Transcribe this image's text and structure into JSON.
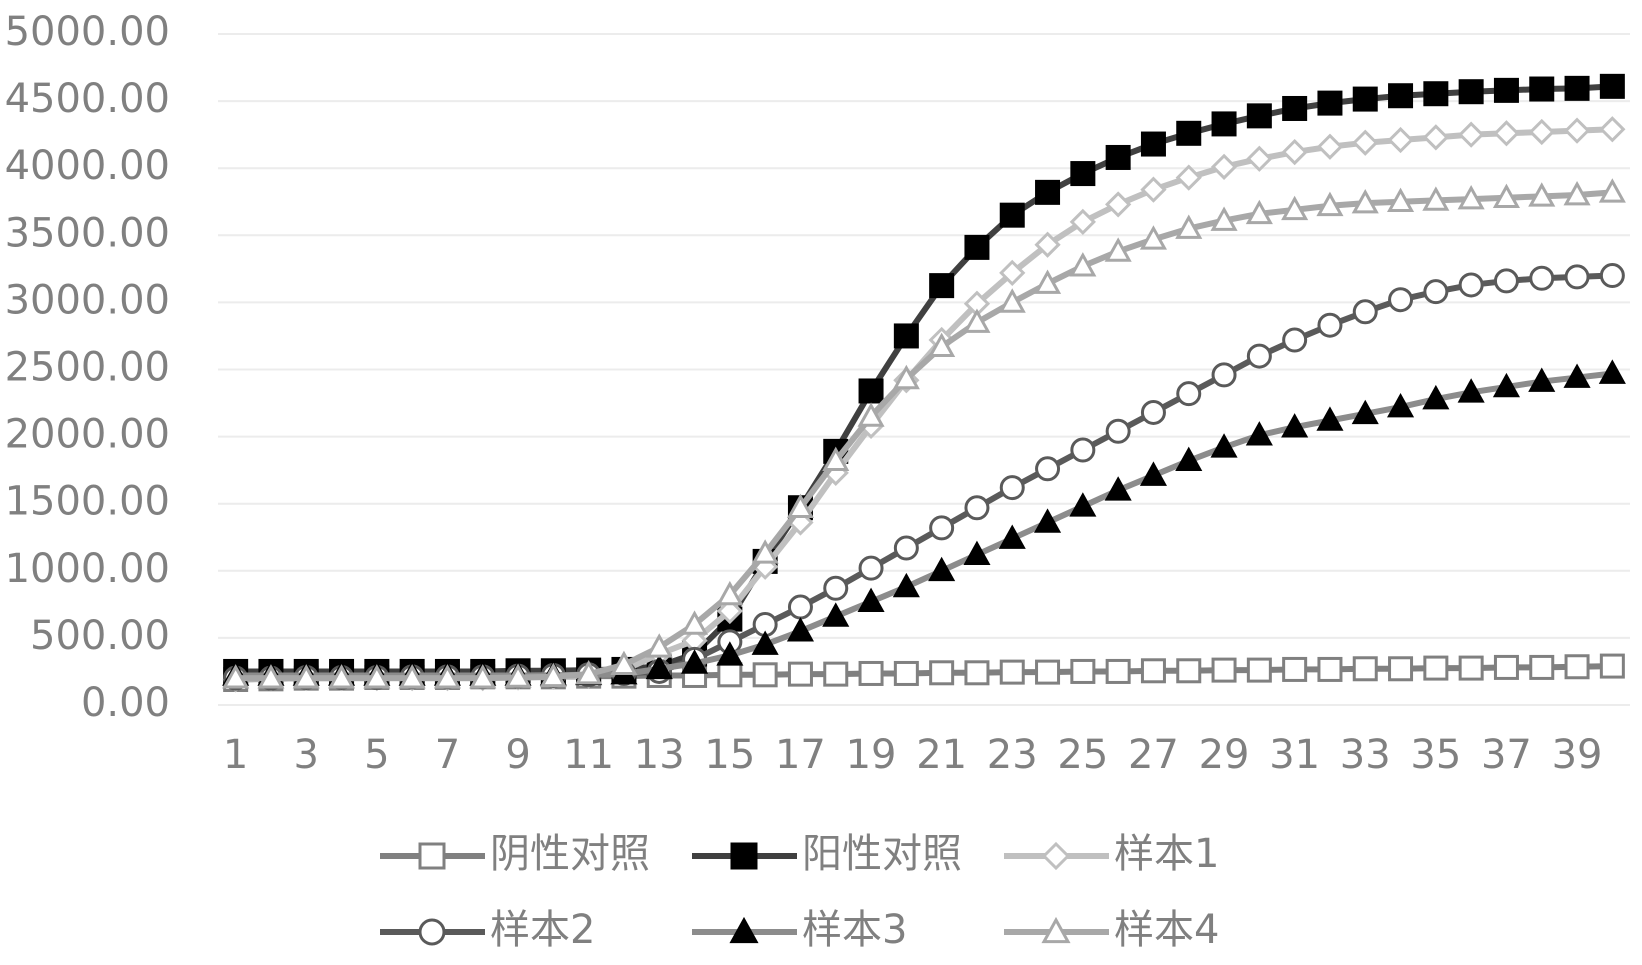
{
  "chart_data": {
    "type": "line",
    "categories": [
      1,
      null,
      3,
      null,
      5,
      null,
      7,
      null,
      9,
      null,
      11,
      null,
      13,
      null,
      15,
      null,
      17,
      null,
      19,
      null,
      21,
      null,
      23,
      null,
      25,
      null,
      27,
      null,
      29,
      null,
      31,
      null,
      33,
      null,
      35,
      null,
      37,
      null,
      39,
      null
    ],
    "ylim": [
      0,
      5000
    ],
    "yticks": [
      {
        "value": 0,
        "label": "0.00"
      },
      {
        "value": 500,
        "label": "500.00"
      },
      {
        "value": 1000,
        "label": "1000.00"
      },
      {
        "value": 1500,
        "label": "1500.00"
      },
      {
        "value": 2000,
        "label": "2000.00"
      },
      {
        "value": 2500,
        "label": "2500.00"
      },
      {
        "value": 3000,
        "label": "3000.00"
      },
      {
        "value": 3500,
        "label": "3500.00"
      },
      {
        "value": 4000,
        "label": "4000.00"
      },
      {
        "value": 4500,
        "label": "4500.00"
      },
      {
        "value": 5000,
        "label": "5000.00"
      }
    ],
    "grid": true,
    "series": [
      {
        "name": "阴性对照",
        "color": "#808080",
        "marker": "square",
        "marker_fill": "#ffffff",
        "values": [
          190,
          195,
          200,
          200,
          205,
          205,
          205,
          210,
          210,
          210,
          215,
          215,
          220,
          220,
          225,
          225,
          230,
          230,
          235,
          235,
          240,
          240,
          245,
          245,
          250,
          250,
          255,
          255,
          260,
          260,
          265,
          265,
          270,
          270,
          275,
          275,
          280,
          280,
          285,
          290
        ]
      },
      {
        "name": "阳性对照",
        "color": "#404040",
        "marker": "square",
        "marker_fill": "#000000",
        "values": [
          250,
          250,
          250,
          250,
          250,
          250,
          250,
          250,
          255,
          255,
          260,
          265,
          290,
          380,
          640,
          1070,
          1470,
          1890,
          2340,
          2750,
          3125,
          3410,
          3650,
          3820,
          3960,
          4080,
          4180,
          4260,
          4330,
          4390,
          4445,
          4485,
          4515,
          4540,
          4555,
          4570,
          4580,
          4590,
          4595,
          4610
        ]
      },
      {
        "name": "样本1",
        "color": "#c0c0c0",
        "marker": "diamond",
        "marker_fill": "#ffffff",
        "values": [
          190,
          195,
          200,
          200,
          200,
          200,
          200,
          200,
          205,
          210,
          220,
          260,
          380,
          480,
          700,
          1030,
          1360,
          1730,
          2080,
          2420,
          2720,
          2990,
          3220,
          3430,
          3600,
          3730,
          3840,
          3930,
          4010,
          4070,
          4120,
          4160,
          4190,
          4210,
          4230,
          4250,
          4260,
          4270,
          4280,
          4290
        ]
      },
      {
        "name": "样本2",
        "color": "#5a5a5a",
        "marker": "circle",
        "marker_fill": "#ffffff",
        "values": [
          200,
          200,
          205,
          205,
          205,
          210,
          210,
          210,
          215,
          220,
          225,
          235,
          250,
          340,
          470,
          600,
          730,
          870,
          1020,
          1170,
          1320,
          1470,
          1620,
          1760,
          1900,
          2040,
          2180,
          2320,
          2460,
          2600,
          2720,
          2830,
          2930,
          3020,
          3080,
          3130,
          3160,
          3180,
          3190,
          3200
        ]
      },
      {
        "name": "样本3",
        "color": "#8c8c8c",
        "marker": "triangle",
        "marker_fill": "#000000",
        "values": [
          220,
          220,
          220,
          220,
          220,
          220,
          220,
          220,
          220,
          222,
          225,
          230,
          270,
          310,
          370,
          450,
          550,
          660,
          770,
          880,
          1000,
          1120,
          1240,
          1360,
          1480,
          1600,
          1710,
          1820,
          1920,
          2010,
          2070,
          2120,
          2170,
          2220,
          2280,
          2330,
          2370,
          2410,
          2440,
          2470
        ]
      },
      {
        "name": "样本4",
        "color": "#a8a8a8",
        "marker": "triangle",
        "marker_fill": "#ffffff",
        "values": [
          200,
          200,
          200,
          200,
          200,
          200,
          200,
          200,
          205,
          210,
          230,
          300,
          430,
          600,
          820,
          1130,
          1470,
          1820,
          2150,
          2430,
          2670,
          2850,
          3000,
          3140,
          3270,
          3380,
          3470,
          3550,
          3610,
          3660,
          3690,
          3720,
          3740,
          3750,
          3760,
          3770,
          3780,
          3790,
          3800,
          3820
        ]
      }
    ]
  }
}
